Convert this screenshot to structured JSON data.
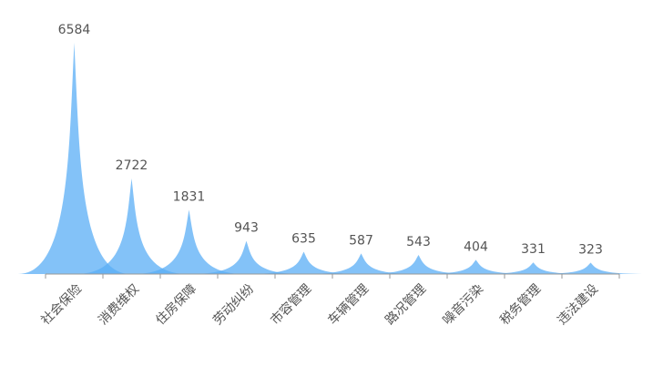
{
  "chart_data": {
    "type": "pictorialBar",
    "categories": [
      "社会保险",
      "消费维权",
      "住房保障",
      "劳动纠纷",
      "市容管理",
      "车辆管理",
      "路况管理",
      "噪音污染",
      "税务管理",
      "违法建设"
    ],
    "values": [
      6584,
      2722,
      1831,
      943,
      635,
      587,
      543,
      404,
      331,
      323
    ],
    "color": "#5aaef5"
  }
}
